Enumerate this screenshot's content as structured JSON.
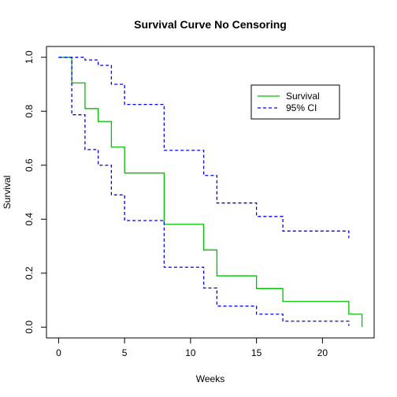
{
  "chart_data": {
    "type": "line",
    "title": "Survival Curve No Censoring",
    "xlabel": "Weeks",
    "ylabel": "Survival",
    "xlim": [
      0,
      23
    ],
    "ylim": [
      0,
      1
    ],
    "x_ticks": [
      0,
      5,
      10,
      15,
      20
    ],
    "y_ticks": [
      0.0,
      0.2,
      0.4,
      0.6,
      0.8,
      1.0
    ],
    "y_tick_labels": [
      "0.0",
      "0.2",
      "0.4",
      "0.6",
      "0.8",
      "1.0"
    ],
    "grid": false,
    "legend": {
      "position": "top-right"
    },
    "series": [
      {
        "name": "Survival",
        "color": "#00c000",
        "style": "solid",
        "step": true,
        "x": [
          0,
          1,
          2,
          3,
          4,
          5,
          8,
          11,
          12,
          15,
          17,
          22,
          23
        ],
        "y": [
          1.0,
          0.905,
          0.81,
          0.762,
          0.667,
          0.571,
          0.381,
          0.286,
          0.19,
          0.143,
          0.095,
          0.048,
          0.0
        ]
      },
      {
        "name": "95% CI",
        "color": "#0000ff",
        "style": "dashed",
        "step": true,
        "x": [
          0,
          1,
          2,
          3,
          4,
          5,
          8,
          11,
          12,
          15,
          17,
          22
        ],
        "y": [
          1.0,
          1.0,
          0.99,
          0.97,
          0.9,
          0.825,
          0.655,
          0.562,
          0.46,
          0.41,
          0.356,
          0.33
        ]
      },
      {
        "name": "",
        "color": "#0000ff",
        "style": "dashed",
        "step": true,
        "x": [
          0,
          1,
          2,
          3,
          4,
          5,
          8,
          11,
          12,
          15,
          17,
          22
        ],
        "y": [
          1.0,
          0.787,
          0.658,
          0.6,
          0.49,
          0.395,
          0.222,
          0.145,
          0.078,
          0.048,
          0.022,
          0.005
        ]
      }
    ]
  }
}
